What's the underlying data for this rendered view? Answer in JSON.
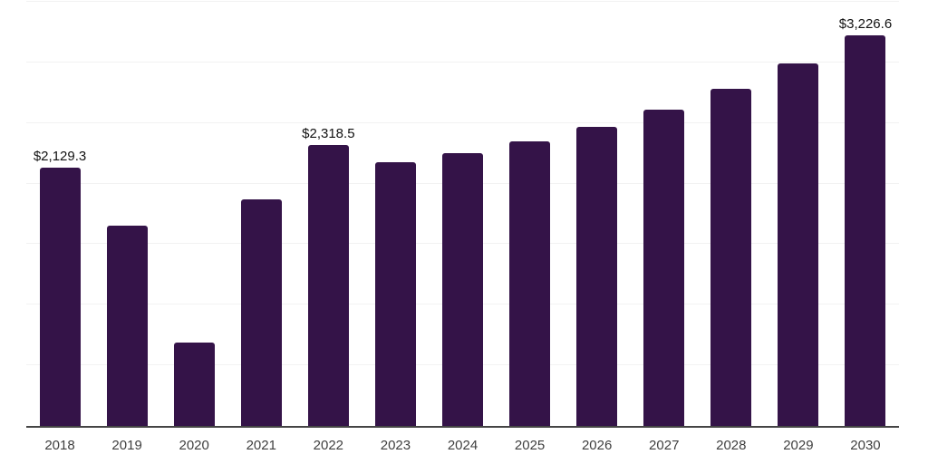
{
  "chart_data": {
    "type": "bar",
    "title": "",
    "xlabel": "",
    "ylabel": "",
    "categories": [
      "2018",
      "2019",
      "2020",
      "2021",
      "2022",
      "2023",
      "2024",
      "2025",
      "2026",
      "2027",
      "2028",
      "2029",
      "2030"
    ],
    "values": [
      2129.3,
      1650,
      690,
      1870,
      2318.5,
      2180,
      2250,
      2350,
      2465,
      2610,
      2780,
      2990,
      3226.6
    ],
    "data_labels": {
      "2018": "$2,129.3",
      "2022": "$2,318.5",
      "2030": "$3,226.6"
    },
    "ylim": [
      0,
      3500
    ],
    "grid_interval": 500,
    "grid": true,
    "legend": false,
    "y_axis_labels_visible": false,
    "colors": {
      "bar": "#341348",
      "gridline": "#F2F2F2",
      "axis_line": "#454545",
      "tick_label": "#3F3F3F",
      "data_label": "#111111",
      "background": "#FFFFFF"
    }
  }
}
